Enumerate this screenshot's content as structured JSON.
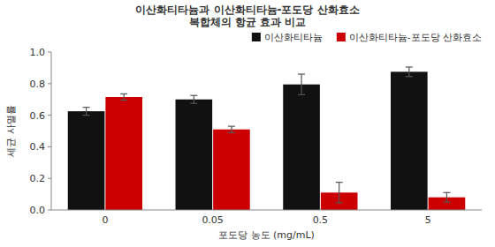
{
  "chart_data": {
    "type": "bar",
    "title": "이산화티타늄과 이산화티타늄-포도당 산화효소\n복합체의 항균 효과 비교",
    "xlabel": "포도당 농도 (mg/mL)",
    "ylabel": "세균 사멸률",
    "categories": [
      "0",
      "0.05",
      "0.5",
      "5"
    ],
    "series": [
      {
        "name": "이산화티타늄",
        "color": "#111111",
        "values": [
          0.625,
          0.7,
          0.795,
          0.875
        ],
        "errors": [
          0.025,
          0.025,
          0.065,
          0.03
        ]
      },
      {
        "name": "이산화티타늄-포도당 산화효소",
        "color": "#cc0000",
        "values": [
          0.715,
          0.51,
          0.11,
          0.08
        ],
        "errors": [
          0.02,
          0.02,
          0.065,
          0.03
        ]
      }
    ],
    "ylim": [
      0.0,
      1.0
    ],
    "yticks": [
      {
        "value": 0,
        "label": "0.0"
      },
      0.2,
      0.4,
      0.6,
      0.8,
      {
        "value": 1,
        "label": "1.0"
      }
    ],
    "grid": false,
    "legend": "upper right"
  }
}
